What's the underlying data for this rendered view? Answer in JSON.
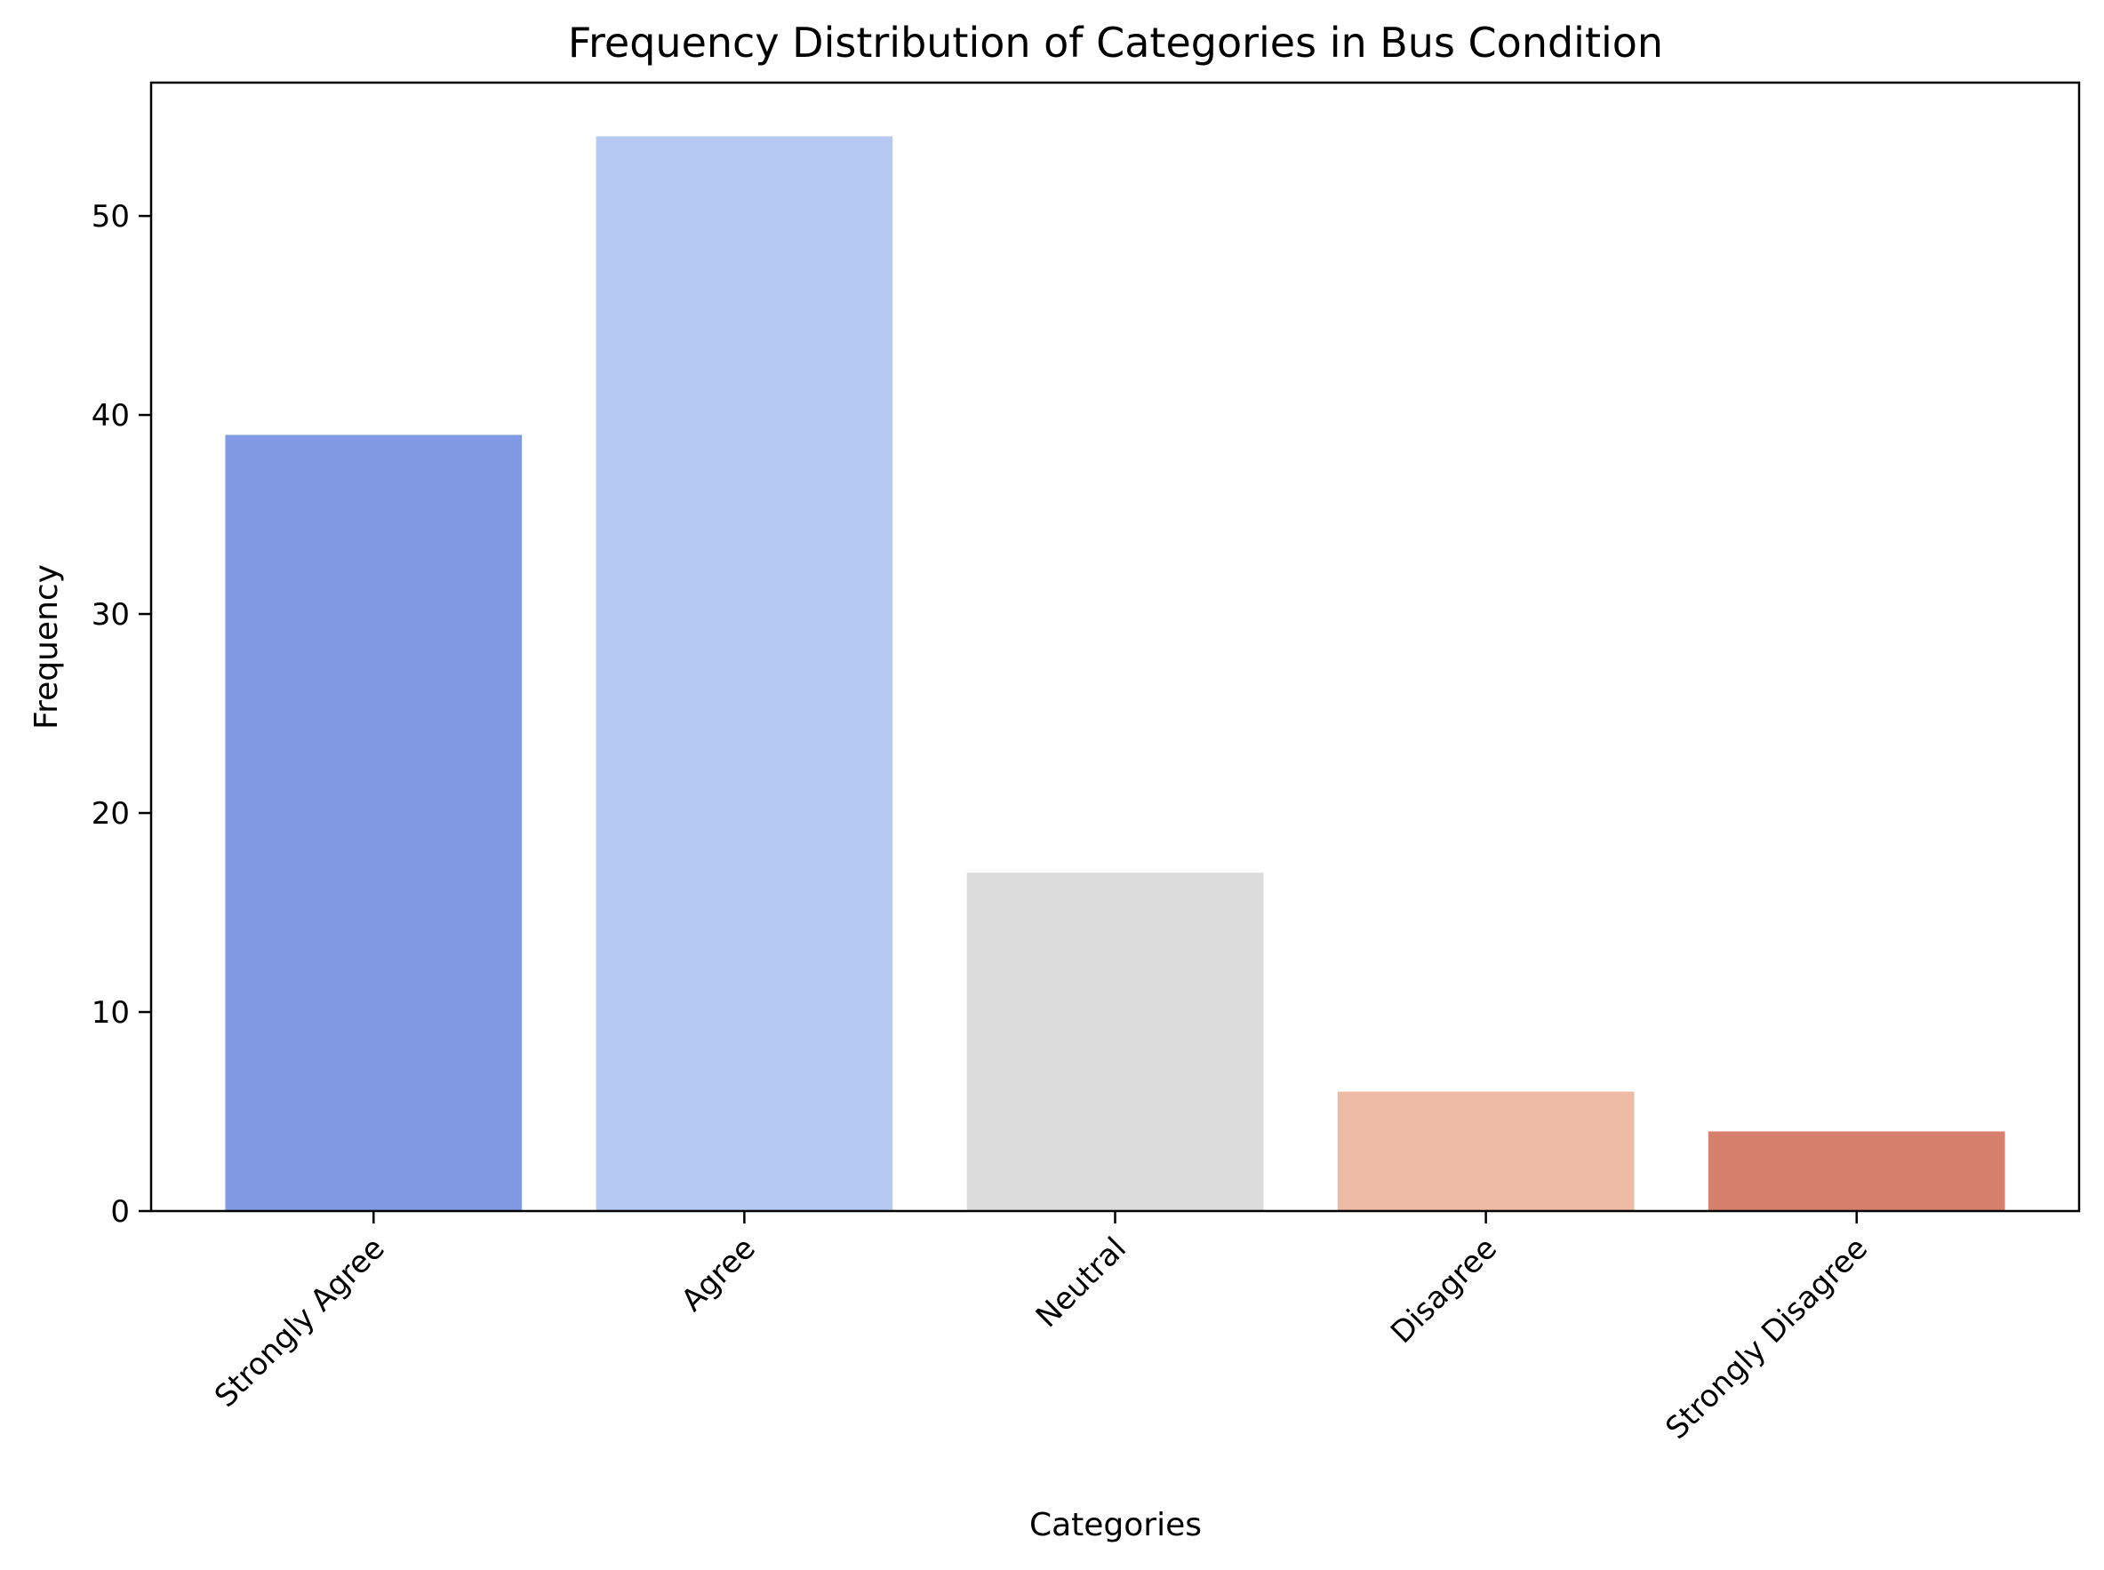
{
  "chart_data": {
    "type": "bar",
    "title": "Frequency Distribution of Categories in Bus Condition",
    "xlabel": "Categories",
    "ylabel": "Frequency",
    "categories": [
      "Strongly Agree",
      "Agree",
      "Neutral",
      "Disagree",
      "Strongly Disagree"
    ],
    "values": [
      39,
      54,
      17,
      6,
      4
    ],
    "colors": [
      "#8199e2",
      "#b6c9f2",
      "#dcdcdc",
      "#edbba4",
      "#d7806d"
    ],
    "ylim": [
      0,
      56.7
    ],
    "yticks": [
      0,
      10,
      20,
      30,
      40,
      50
    ],
    "grid": false,
    "legend": "none"
  }
}
